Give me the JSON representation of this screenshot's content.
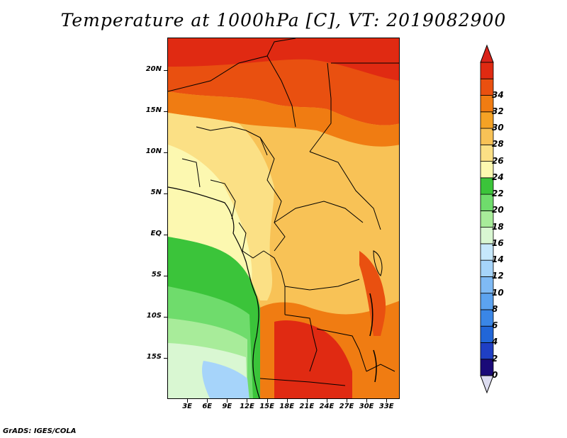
{
  "title": "Temperature at 1000hPa [C], VT: 2019082900",
  "footer": "GrADS: IGES/COLA",
  "map": {
    "region": "Central Africa",
    "lon_range": [
      0,
      35
    ],
    "lat_range": [
      -20,
      24
    ],
    "lat_ticks": [
      {
        "value": 20,
        "label": "20N"
      },
      {
        "value": 15,
        "label": "15N"
      },
      {
        "value": 10,
        "label": "10N"
      },
      {
        "value": 5,
        "label": "5N"
      },
      {
        "value": 0,
        "label": "EQ"
      },
      {
        "value": -5,
        "label": "5S"
      },
      {
        "value": -10,
        "label": "10S"
      },
      {
        "value": -15,
        "label": "15S"
      }
    ],
    "lon_ticks": [
      {
        "value": 3,
        "label": "3E"
      },
      {
        "value": 6,
        "label": "6E"
      },
      {
        "value": 9,
        "label": "9E"
      },
      {
        "value": 12,
        "label": "12E"
      },
      {
        "value": 15,
        "label": "15E"
      },
      {
        "value": 18,
        "label": "18E"
      },
      {
        "value": 21,
        "label": "21E"
      },
      {
        "value": 24,
        "label": "24E"
      },
      {
        "value": 27,
        "label": "27E"
      },
      {
        "value": 30,
        "label": "30E"
      },
      {
        "value": 33,
        "label": "33E"
      }
    ]
  },
  "colorbar": {
    "levels": [
      "0",
      "2",
      "4",
      "6",
      "8",
      "10",
      "12",
      "14",
      "16",
      "18",
      "20",
      "22",
      "24",
      "26",
      "28",
      "30",
      "32",
      "34"
    ],
    "colors": [
      "#1a0a78",
      "#1f3fc4",
      "#2166d8",
      "#3a86e6",
      "#5ca3f0",
      "#7fbaf5",
      "#a6d4fa",
      "#c6e8fc",
      "#d9f7d2",
      "#a8ec9a",
      "#6fdc6c",
      "#3bc43a",
      "#fcf8b0",
      "#fbe085",
      "#f8c256",
      "#f5a225",
      "#f07c12",
      "#e95010",
      "#e02a12"
    ],
    "under_color": "#dcdcf0",
    "over_color": "#d9231a"
  }
}
